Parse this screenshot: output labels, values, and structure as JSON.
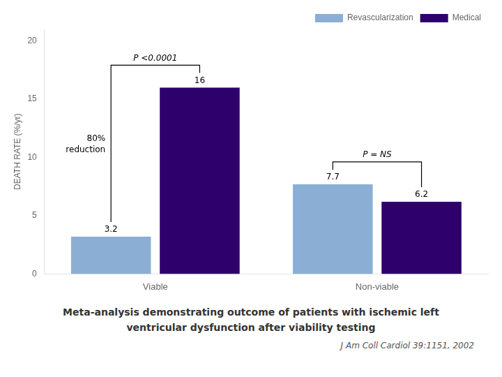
{
  "chart_data": {
    "type": "bar",
    "categories": [
      "Viable",
      "Non-viable"
    ],
    "series": [
      {
        "name": "Revascularization",
        "color": "#8BAFD4",
        "values": [
          3.2,
          7.7
        ]
      },
      {
        "name": "Medical",
        "color": "#2E006C",
        "values": [
          16,
          6.2
        ]
      }
    ],
    "ylabel": "DEATH RATE (%/yr)",
    "ylim": [
      0,
      21
    ],
    "yticks": [
      0,
      5,
      10,
      15,
      20
    ],
    "grid": false,
    "legend": "upper right",
    "data_labels": true,
    "comparisons": [
      {
        "category": "Viable",
        "label": "P <0.0001"
      },
      {
        "category": "Non-viable",
        "label": "P = NS"
      }
    ],
    "annotations": [
      {
        "category": "Viable",
        "text": "80%\nreduction"
      }
    ],
    "caption": [
      "Meta-analysis demonstrating outcome of patients with ischemic left",
      "ventricular dysfunction after viability testing"
    ],
    "source": "J Am Coll Cardiol 39:1151, 2002"
  }
}
